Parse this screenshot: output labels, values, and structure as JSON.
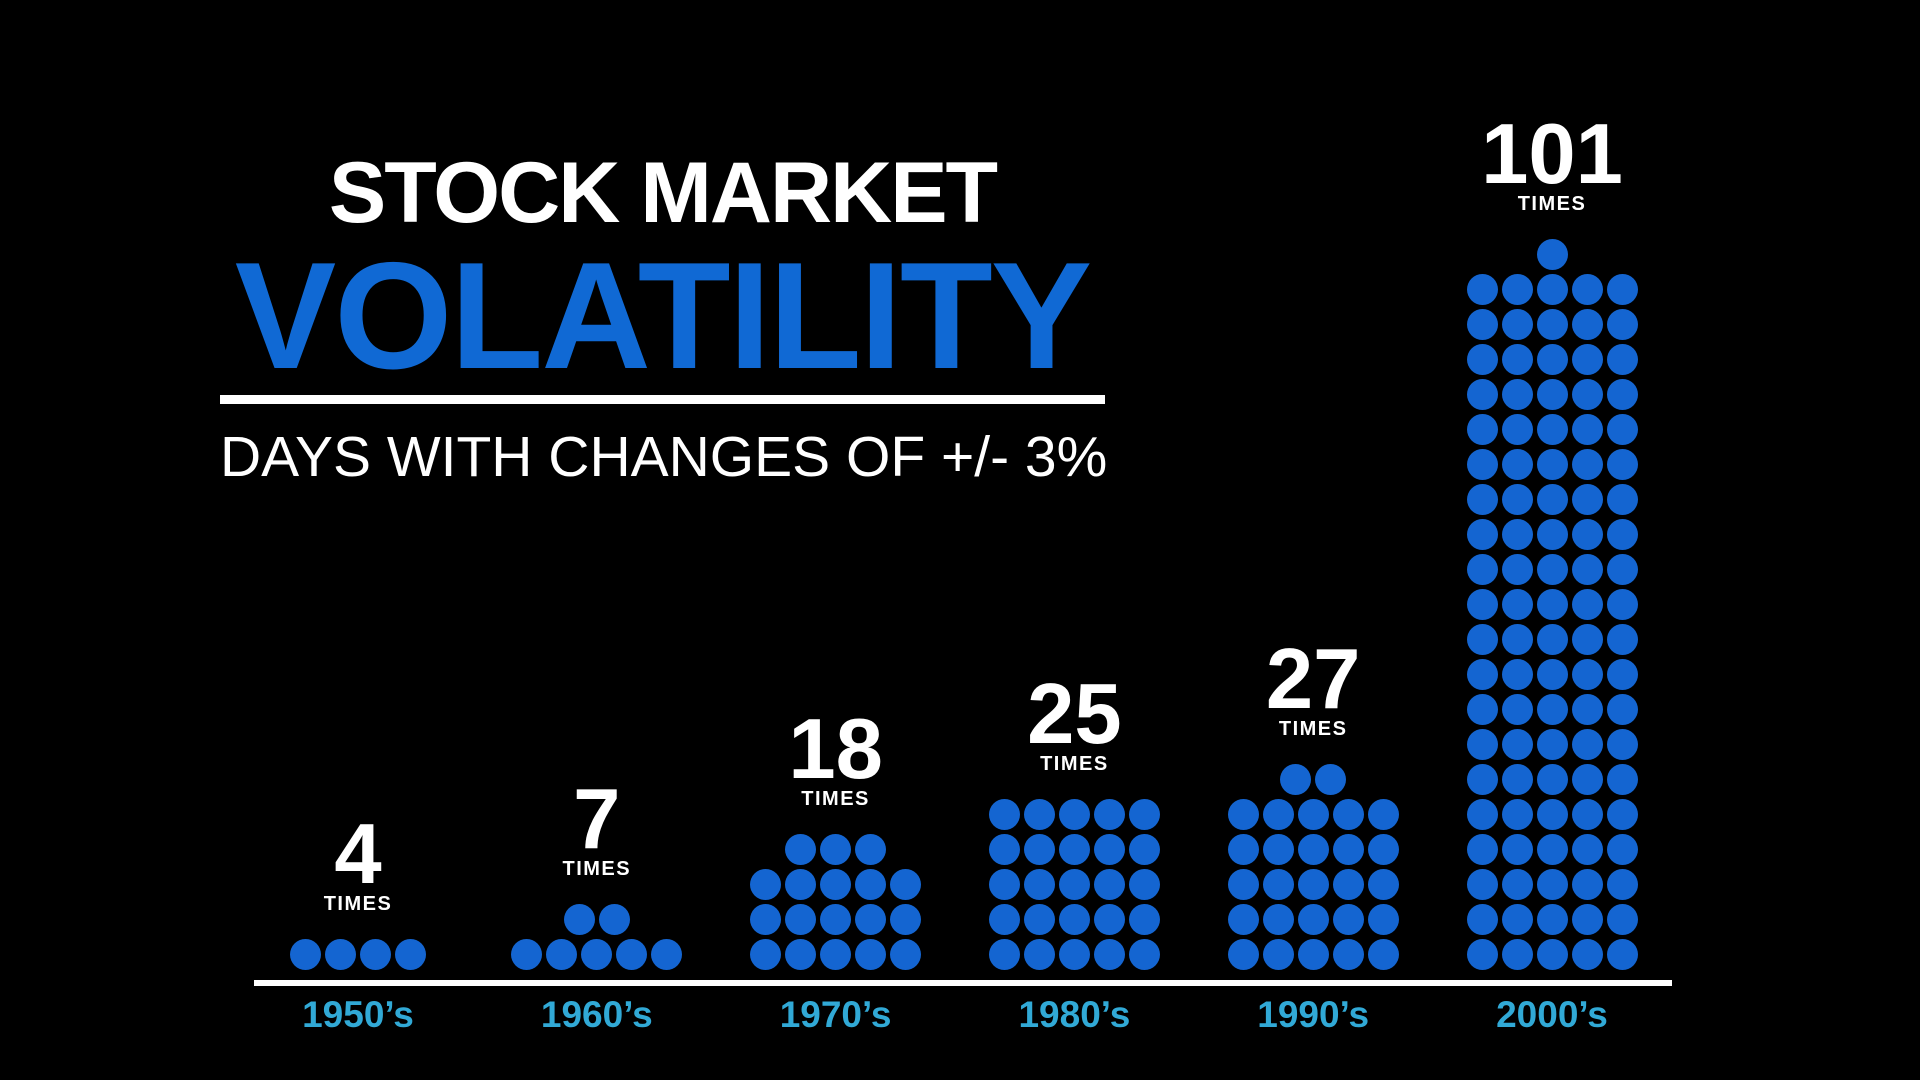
{
  "title": {
    "line1": "STOCK MARKET",
    "line2": "VOLATILITY",
    "subtitle": "DAYS WITH CHANGES OF +/- 3%"
  },
  "chart_data": {
    "type": "pictogram",
    "description": "Dot-matrix pictogram: each dot represents one day with a stock market change of +/- 3%",
    "categories": [
      "1950’s",
      "1960’s",
      "1970’s",
      "1980’s",
      "1990’s",
      "2000’s"
    ],
    "values": [
      4,
      7,
      18,
      25,
      27,
      101
    ],
    "unit_label": "TIMES",
    "columns_per_block": 5,
    "partial_row_position": "top-centered",
    "legend_position": "none",
    "grid": false,
    "xlabel": "",
    "ylabel": ""
  },
  "colors": {
    "background": "#000000",
    "title_text": "#ffffff",
    "accent_blue": "#1069d4",
    "dot_blue": "#1465d1",
    "axis_line": "#ffffff",
    "category_label": "#31a9d6"
  }
}
